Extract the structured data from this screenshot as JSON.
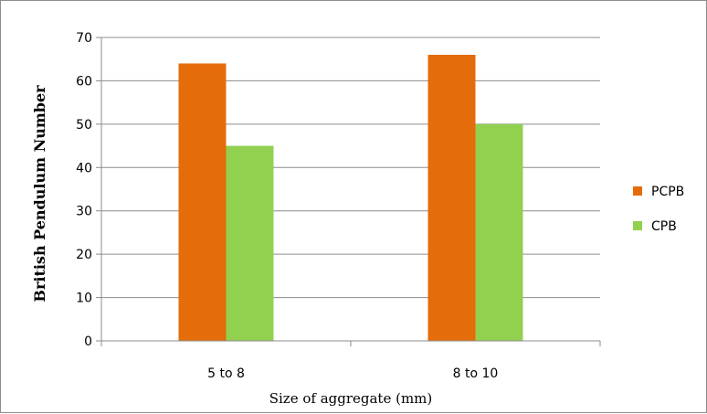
{
  "chart_data": {
    "type": "bar",
    "title": "",
    "xlabel": "Size of aggregate (mm)",
    "ylabel": "British Pendulum Number",
    "categories": [
      "5 to 8",
      "8 to 10"
    ],
    "series": [
      {
        "name": "PCPB",
        "color": "#E46C0A",
        "values": [
          64,
          66
        ]
      },
      {
        "name": "CPB",
        "color": "#92D050",
        "values": [
          45,
          50
        ]
      }
    ],
    "ylim": [
      0,
      70
    ],
    "yticks": [
      0,
      10,
      20,
      30,
      40,
      50,
      60,
      70
    ],
    "grid": true,
    "legend": "right"
  }
}
